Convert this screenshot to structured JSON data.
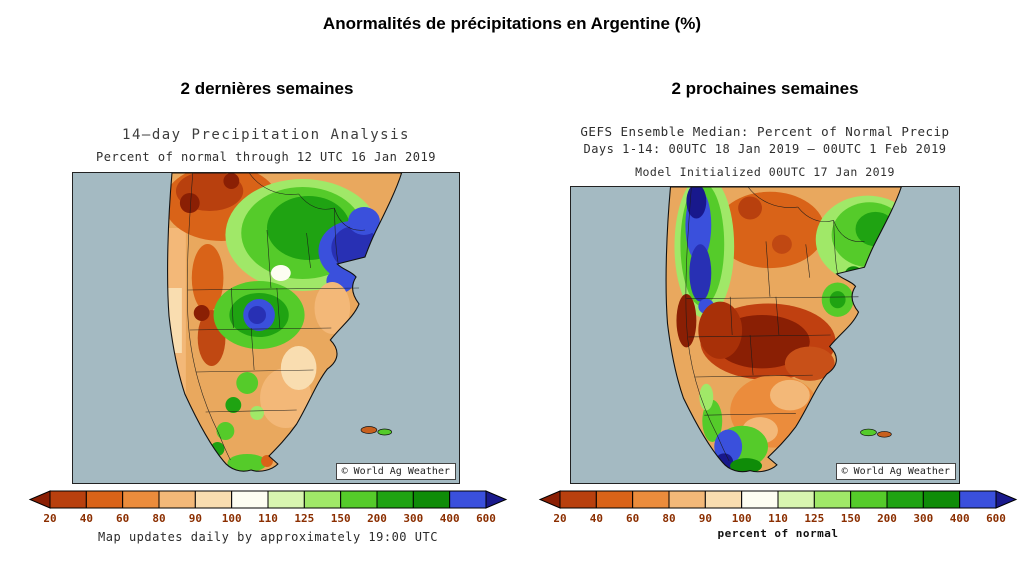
{
  "title": "Anormalités de précipitations en Argentine (%)",
  "left_panel": {
    "subtitle": "2 dernières semaines",
    "map_title": "14—day Precipitation Analysis",
    "map_subtitle": "Percent of normal through 12 UTC 16 Jan 2019",
    "credit": "© World Ag Weather",
    "footer": "Map updates daily by approximately 19:00 UTC"
  },
  "right_panel": {
    "subtitle": "2 prochaines semaines",
    "map_title": "GEFS Ensemble Median: Percent of Normal Precip",
    "map_subtitle": "Days 1-14: 00UTC 18 Jan 2019 — 00UTC 1 Feb 2019",
    "map_init": "Model Initialized 00UTC 17 Jan 2019",
    "credit": "© World Ag Weather",
    "scale_caption": "percent of normal"
  },
  "colorbar": {
    "labels": [
      "20",
      "40",
      "60",
      "80",
      "90",
      "100",
      "110",
      "125",
      "150",
      "200",
      "300",
      "400",
      "600"
    ],
    "segment_colors": [
      "#b8400e",
      "#d96318",
      "#eb8c3c",
      "#f3b878",
      "#f9ddb0",
      "#fdfdf2",
      "#d8f5b0",
      "#a0e868",
      "#55cb2a",
      "#1fa312",
      "#0f8c08",
      "#3a50dc"
    ],
    "arrow_left_color": "#8a1f04",
    "arrow_right_color": "#1a1a8c",
    "label_color": "#8b2e00"
  },
  "map_colors": {
    "ocean": "#a4bac2",
    "land_base": "#e9a85e",
    "border": "#1a1a1a"
  }
}
